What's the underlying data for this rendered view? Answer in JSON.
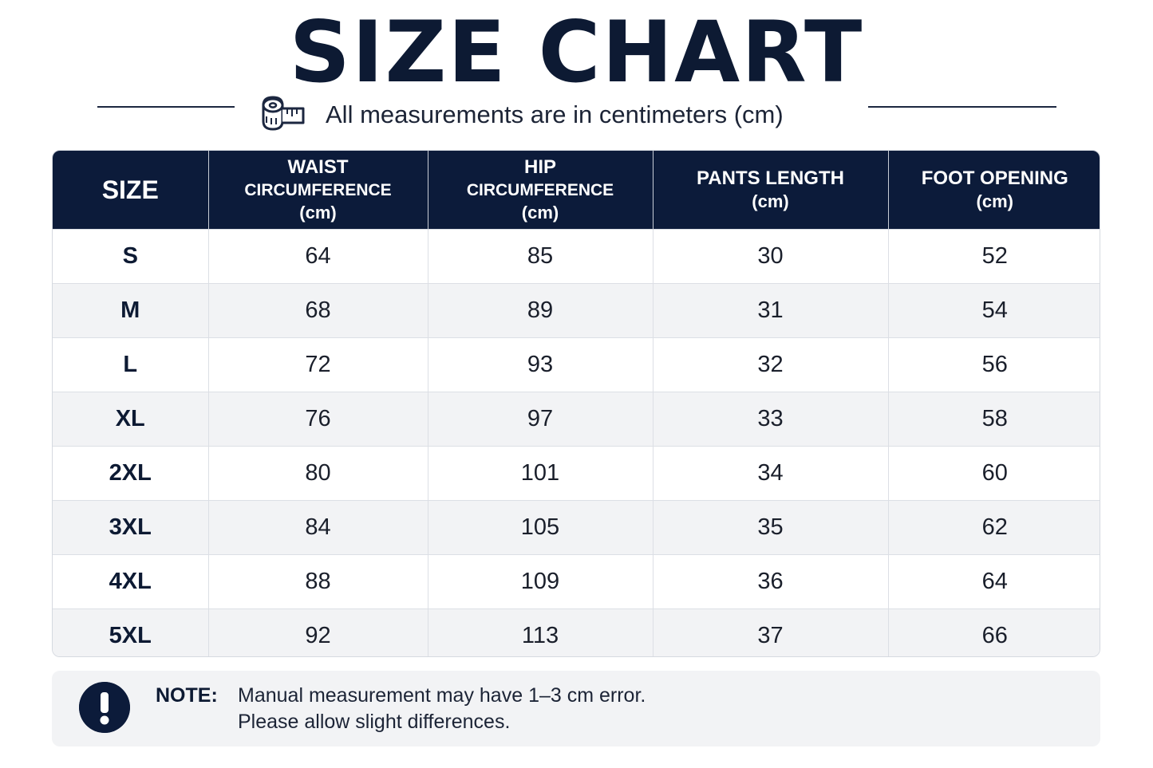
{
  "title": "SIZE CHART",
  "subtitle": "All measurements are in centimeters (cm)",
  "colors": {
    "header_bg": "#0c1b3a",
    "title": "#0d1a33",
    "alt_row": "#f2f3f5"
  },
  "icons": {
    "subtitle_icon": "measuring-tape-icon",
    "note_icon": "exclamation-icon"
  },
  "table": {
    "headers": [
      {
        "line1": "SIZE",
        "line2": "",
        "line3": ""
      },
      {
        "line1": "WAIST",
        "line2": "CIRCUMFERENCE",
        "line3": "(cm)"
      },
      {
        "line1": "HIP",
        "line2": "CIRCUMFERENCE",
        "line3": "(cm)"
      },
      {
        "line1": "PANTS LENGTH",
        "line2": "(cm)",
        "line3": ""
      },
      {
        "line1": "FOOT OPENING",
        "line2": "(cm)",
        "line3": ""
      }
    ],
    "rows": [
      [
        "S",
        "64",
        "85",
        "30",
        "52"
      ],
      [
        "M",
        "68",
        "89",
        "31",
        "54"
      ],
      [
        "L",
        "72",
        "93",
        "32",
        "56"
      ],
      [
        "XL",
        "76",
        "97",
        "33",
        "58"
      ],
      [
        "2XL",
        "80",
        "101",
        "34",
        "60"
      ],
      [
        "3XL",
        "84",
        "105",
        "35",
        "62"
      ],
      [
        "4XL",
        "88",
        "109",
        "36",
        "64"
      ],
      [
        "5XL",
        "92",
        "113",
        "37",
        "66"
      ]
    ]
  },
  "note": {
    "label": "NOTE:",
    "line1": "Manual measurement may have 1–3 cm error.",
    "line2": "Please allow slight differences."
  }
}
